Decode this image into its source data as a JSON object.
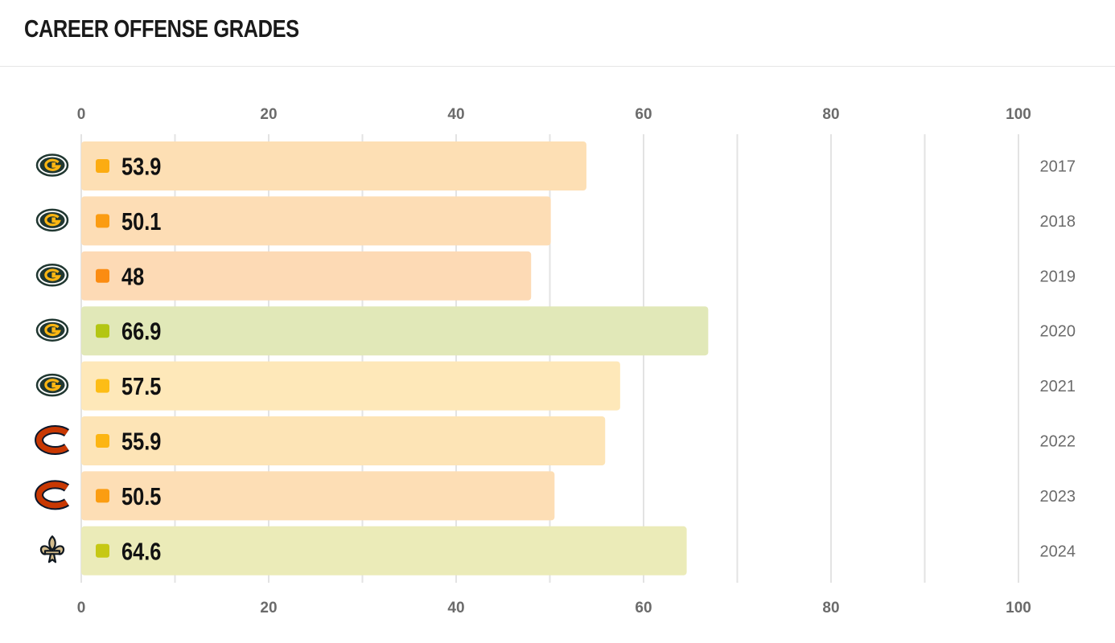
{
  "header": {
    "title": "CAREER OFFENSE GRADES"
  },
  "chart_data": {
    "type": "bar",
    "orientation": "horizontal",
    "title": "CAREER OFFENSE GRADES",
    "xlim": [
      0,
      100
    ],
    "ticks": [
      "0",
      "20",
      "40",
      "60",
      "80",
      "100"
    ],
    "grid": true,
    "rows": [
      {
        "year": "2017",
        "value": 53.9,
        "label": "53.9",
        "team_icon": "packers-logo-icon",
        "color": "#fddfb4",
        "dot": "#fcac12"
      },
      {
        "year": "2018",
        "value": 50.1,
        "label": "50.1",
        "team_icon": "packers-logo-icon",
        "color": "#fdddb5",
        "dot": "#fb9c12"
      },
      {
        "year": "2019",
        "value": 48,
        "label": "48",
        "team_icon": "packers-logo-icon",
        "color": "#fddab5",
        "dot": "#fb8c12"
      },
      {
        "year": "2020",
        "value": 66.9,
        "label": "66.9",
        "team_icon": "packers-logo-icon",
        "color": "#e1e8b8",
        "dot": "#b3c613"
      },
      {
        "year": "2021",
        "value": 57.5,
        "label": "57.5",
        "team_icon": "packers-logo-icon",
        "color": "#fee8b9",
        "dot": "#fdbd16"
      },
      {
        "year": "2022",
        "value": 55.9,
        "label": "55.9",
        "team_icon": "bears-logo-icon",
        "color": "#fde4b6",
        "dot": "#fcb513"
      },
      {
        "year": "2023",
        "value": 50.5,
        "label": "50.5",
        "team_icon": "bears-logo-icon",
        "color": "#fddeb5",
        "dot": "#fb9d12"
      },
      {
        "year": "2024",
        "value": 64.6,
        "label": "64.6",
        "team_icon": "saints-logo-icon",
        "color": "#ebebb8",
        "dot": "#c6c814"
      }
    ]
  }
}
